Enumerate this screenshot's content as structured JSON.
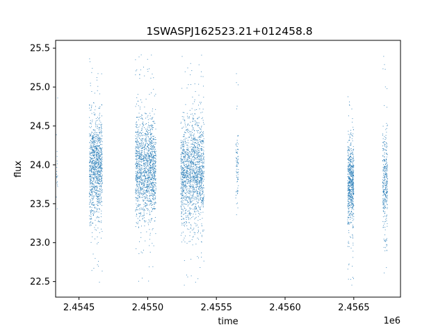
{
  "chart_data": {
    "type": "scatter",
    "title": "1SWASPJ162523.21+012458.8",
    "xlabel": "time",
    "ylabel": "flux",
    "x_offset_label": "1e6",
    "xlim": [
      2454330,
      2456840
    ],
    "ylim": [
      22.3,
      25.6
    ],
    "x_ticks": [
      2454500,
      2455000,
      2455500,
      2456000,
      2456500
    ],
    "x_tick_labels": [
      "2.4545",
      "2.4550",
      "2.4555",
      "2.4560",
      "2.4565"
    ],
    "y_ticks": [
      22.5,
      23.0,
      23.5,
      24.0,
      24.5,
      25.0,
      25.5
    ],
    "y_tick_labels": [
      "22.5",
      "23.0",
      "23.5",
      "24.0",
      "24.5",
      "25.0",
      "25.5"
    ],
    "grid": false,
    "legend": "none",
    "marker_color": "#1f77b4",
    "clusters": [
      {
        "x_start": 2454335,
        "x_end": 2454345,
        "y_center": 23.9,
        "y_min": 23.3,
        "y_max": 25.3,
        "count": 20
      },
      {
        "x_start": 2454575,
        "x_end": 2454670,
        "y_center": 23.95,
        "y_min": 22.45,
        "y_max": 25.45,
        "count": 1100
      },
      {
        "x_start": 2454910,
        "x_end": 2455060,
        "y_center": 23.95,
        "y_min": 22.45,
        "y_max": 25.45,
        "count": 1500
      },
      {
        "x_start": 2455240,
        "x_end": 2455410,
        "y_center": 23.9,
        "y_min": 22.45,
        "y_max": 25.45,
        "count": 1600
      },
      {
        "x_start": 2455640,
        "x_end": 2455660,
        "y_center": 23.95,
        "y_min": 23.3,
        "y_max": 25.3,
        "count": 80
      },
      {
        "x_start": 2456455,
        "x_end": 2456500,
        "y_center": 23.8,
        "y_min": 22.45,
        "y_max": 24.9,
        "count": 650
      },
      {
        "x_start": 2456710,
        "x_end": 2456745,
        "y_center": 23.8,
        "y_min": 22.6,
        "y_max": 25.45,
        "count": 350
      }
    ]
  }
}
